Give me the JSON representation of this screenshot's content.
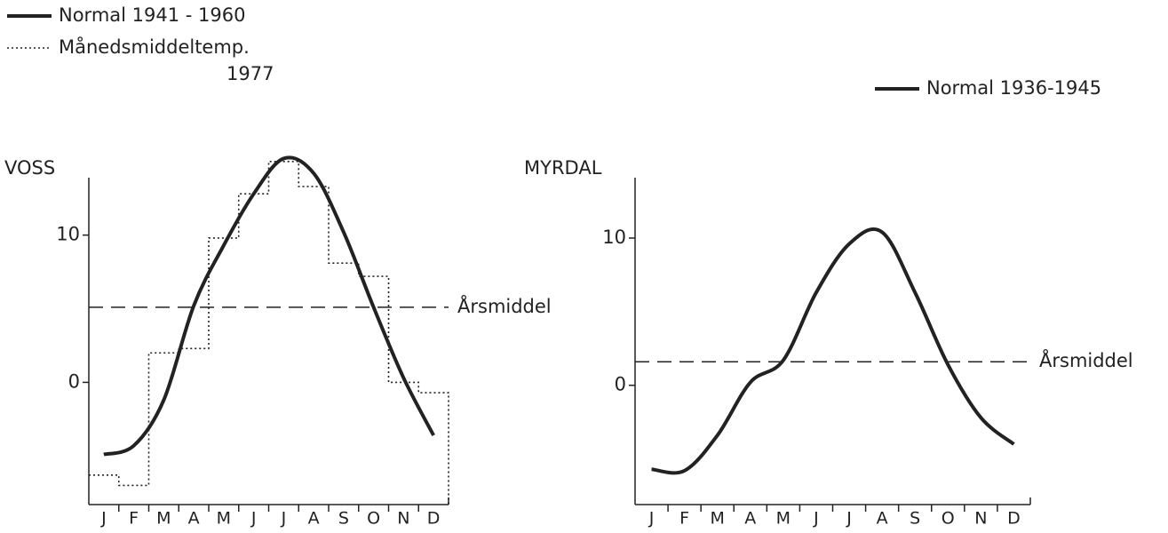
{
  "chart_data": [
    {
      "type": "line",
      "title": "VOSS",
      "categories": [
        "J",
        "F",
        "M",
        "A",
        "M",
        "J",
        "J",
        "A",
        "S",
        "O",
        "N",
        "D"
      ],
      "series": [
        {
          "name": "Normal 1941 - 1960",
          "color": "#222222",
          "style": "solid",
          "drawstyle": "smooth",
          "values": [
            -4.9,
            -4.3,
            -1.2,
            5.2,
            9.3,
            12.8,
            15.2,
            14.2,
            10.2,
            5.1,
            0.3,
            -3.6
          ]
        },
        {
          "name": "Månedsmiddeltemp. 1977",
          "color": "#222222",
          "style": "dotted",
          "drawstyle": "steps",
          "values": [
            -6.3,
            -7.0,
            2.0,
            2.3,
            9.8,
            12.8,
            15.0,
            13.3,
            8.1,
            7.2,
            0.0,
            -0.7
          ]
        }
      ],
      "reference_line": {
        "label": "Årsmiddel",
        "value": 5.1
      },
      "ylim": [
        -8.3,
        13.9
      ],
      "yticks": [
        0,
        10
      ]
    },
    {
      "type": "line",
      "title": "MYRDAL",
      "categories": [
        "J",
        "F",
        "M",
        "A",
        "M",
        "J",
        "J",
        "A",
        "S",
        "O",
        "N",
        "D"
      ],
      "series": [
        {
          "name": "Normal 1936-1945",
          "color": "#222222",
          "style": "solid",
          "drawstyle": "smooth",
          "values": [
            -5.7,
            -5.8,
            -3.4,
            0.2,
            1.7,
            6.3,
            9.6,
            10.4,
            6.3,
            1.4,
            -2.2,
            -4.0
          ]
        }
      ],
      "reference_line": {
        "label": "Årsmiddel",
        "value": 1.6
      },
      "ylim": [
        -8.1,
        14.1
      ],
      "yticks": [
        0,
        10
      ]
    }
  ]
}
